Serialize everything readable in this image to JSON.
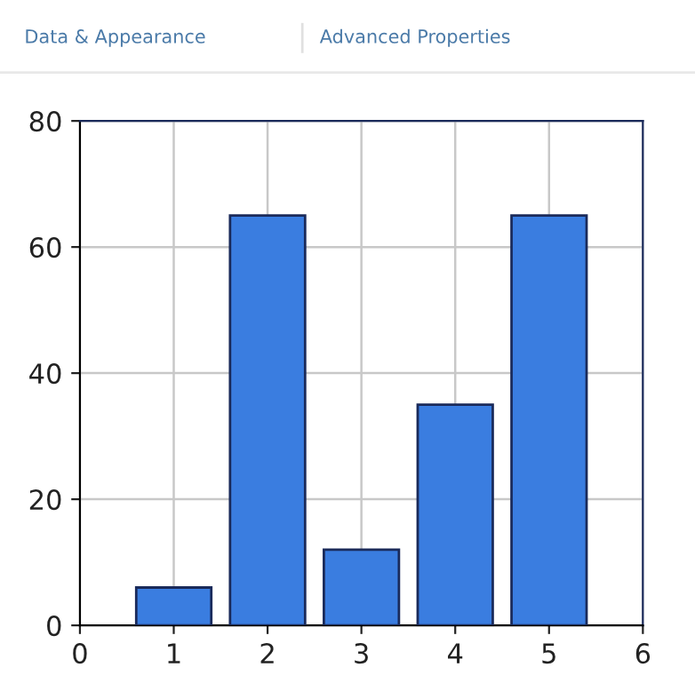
{
  "chart_data": {
    "type": "bar",
    "x": [
      1,
      2,
      3,
      4,
      5
    ],
    "values": [
      6,
      65,
      12,
      35,
      65
    ],
    "color": "#3a7de0",
    "xlim": [
      0,
      6
    ],
    "xticks": [
      0,
      1,
      2,
      3,
      4,
      5,
      6
    ],
    "ylim": [
      0,
      80
    ],
    "yticks": [
      0,
      20,
      40,
      60,
      80
    ],
    "grid": true,
    "annotations": [
      "Data & Appearance",
      "Advanced Properties"
    ]
  }
}
